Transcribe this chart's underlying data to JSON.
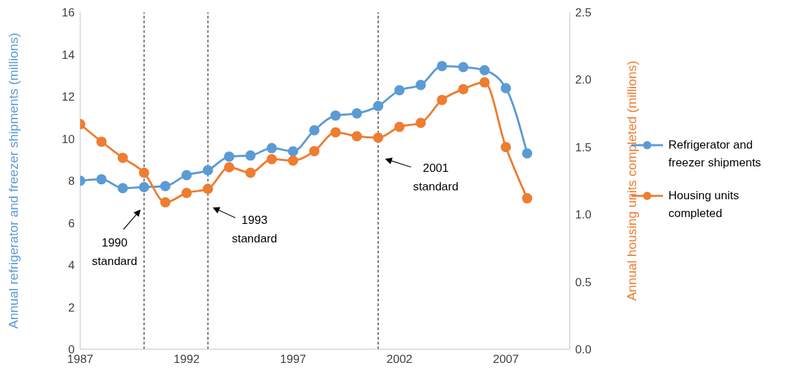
{
  "chart_data": {
    "type": "line",
    "ylabel": "Annual refrigerator and freezer shipments (millions)",
    "y2label": "Annual housing units completed (millions)",
    "x": [
      1987,
      1988,
      1989,
      1990,
      1991,
      1992,
      1993,
      1994,
      1995,
      1996,
      1997,
      1998,
      1999,
      2000,
      2001,
      2002,
      2003,
      2004,
      2005,
      2006,
      2007,
      2008
    ],
    "series": [
      {
        "name": "Refrigerator and freezer shipments",
        "color": "#5b9bd5",
        "values": [
          8.0,
          8.07,
          7.65,
          7.7,
          7.75,
          8.27,
          8.5,
          9.15,
          9.2,
          9.55,
          9.4,
          10.4,
          11.1,
          11.2,
          11.55,
          12.3,
          12.55,
          13.45,
          13.4,
          13.25,
          12.4,
          9.3
        ]
      },
      {
        "name": "Housing units completed",
        "color": "#ed7d31",
        "axis": "y2",
        "values": [
          1.67,
          1.54,
          1.42,
          1.31,
          1.09,
          1.16,
          1.19,
          1.35,
          1.31,
          1.41,
          1.4,
          1.47,
          1.61,
          1.58,
          1.57,
          1.65,
          1.68,
          1.85,
          1.93,
          1.98,
          1.5,
          1.12
        ]
      }
    ],
    "xlim": [
      1987,
      2010
    ],
    "xticks": [
      1987,
      1992,
      1997,
      2002,
      2007
    ],
    "ylim": [
      0,
      16
    ],
    "yticks": [
      0,
      2,
      4,
      6,
      8,
      10,
      12,
      14,
      16
    ],
    "y2lim": [
      0,
      2.5
    ],
    "y2ticks": [
      {
        "value": 0,
        "label": "0.0"
      },
      {
        "value": 0.5,
        "label": "0.5"
      },
      {
        "value": 1,
        "label": "1.0"
      },
      {
        "value": 1.5,
        "label": "1.5"
      },
      {
        "value": 2,
        "label": "2.0"
      },
      {
        "value": 2.5,
        "label": "2.5"
      }
    ],
    "ref_lines": [
      {
        "axis": "x",
        "value": 1990,
        "label": "1990 standard",
        "line_style": "dashed",
        "color": "#000000"
      },
      {
        "axis": "x",
        "value": 1993,
        "label": "1993 standard",
        "line_style": "dashed",
        "color": "#000000"
      },
      {
        "axis": "x",
        "value": 2001,
        "label": "2001 standard",
        "line_style": "dashed",
        "color": "#000000"
      }
    ],
    "grid": false,
    "legend": "right",
    "marker": "circle",
    "line_style": "solid"
  }
}
